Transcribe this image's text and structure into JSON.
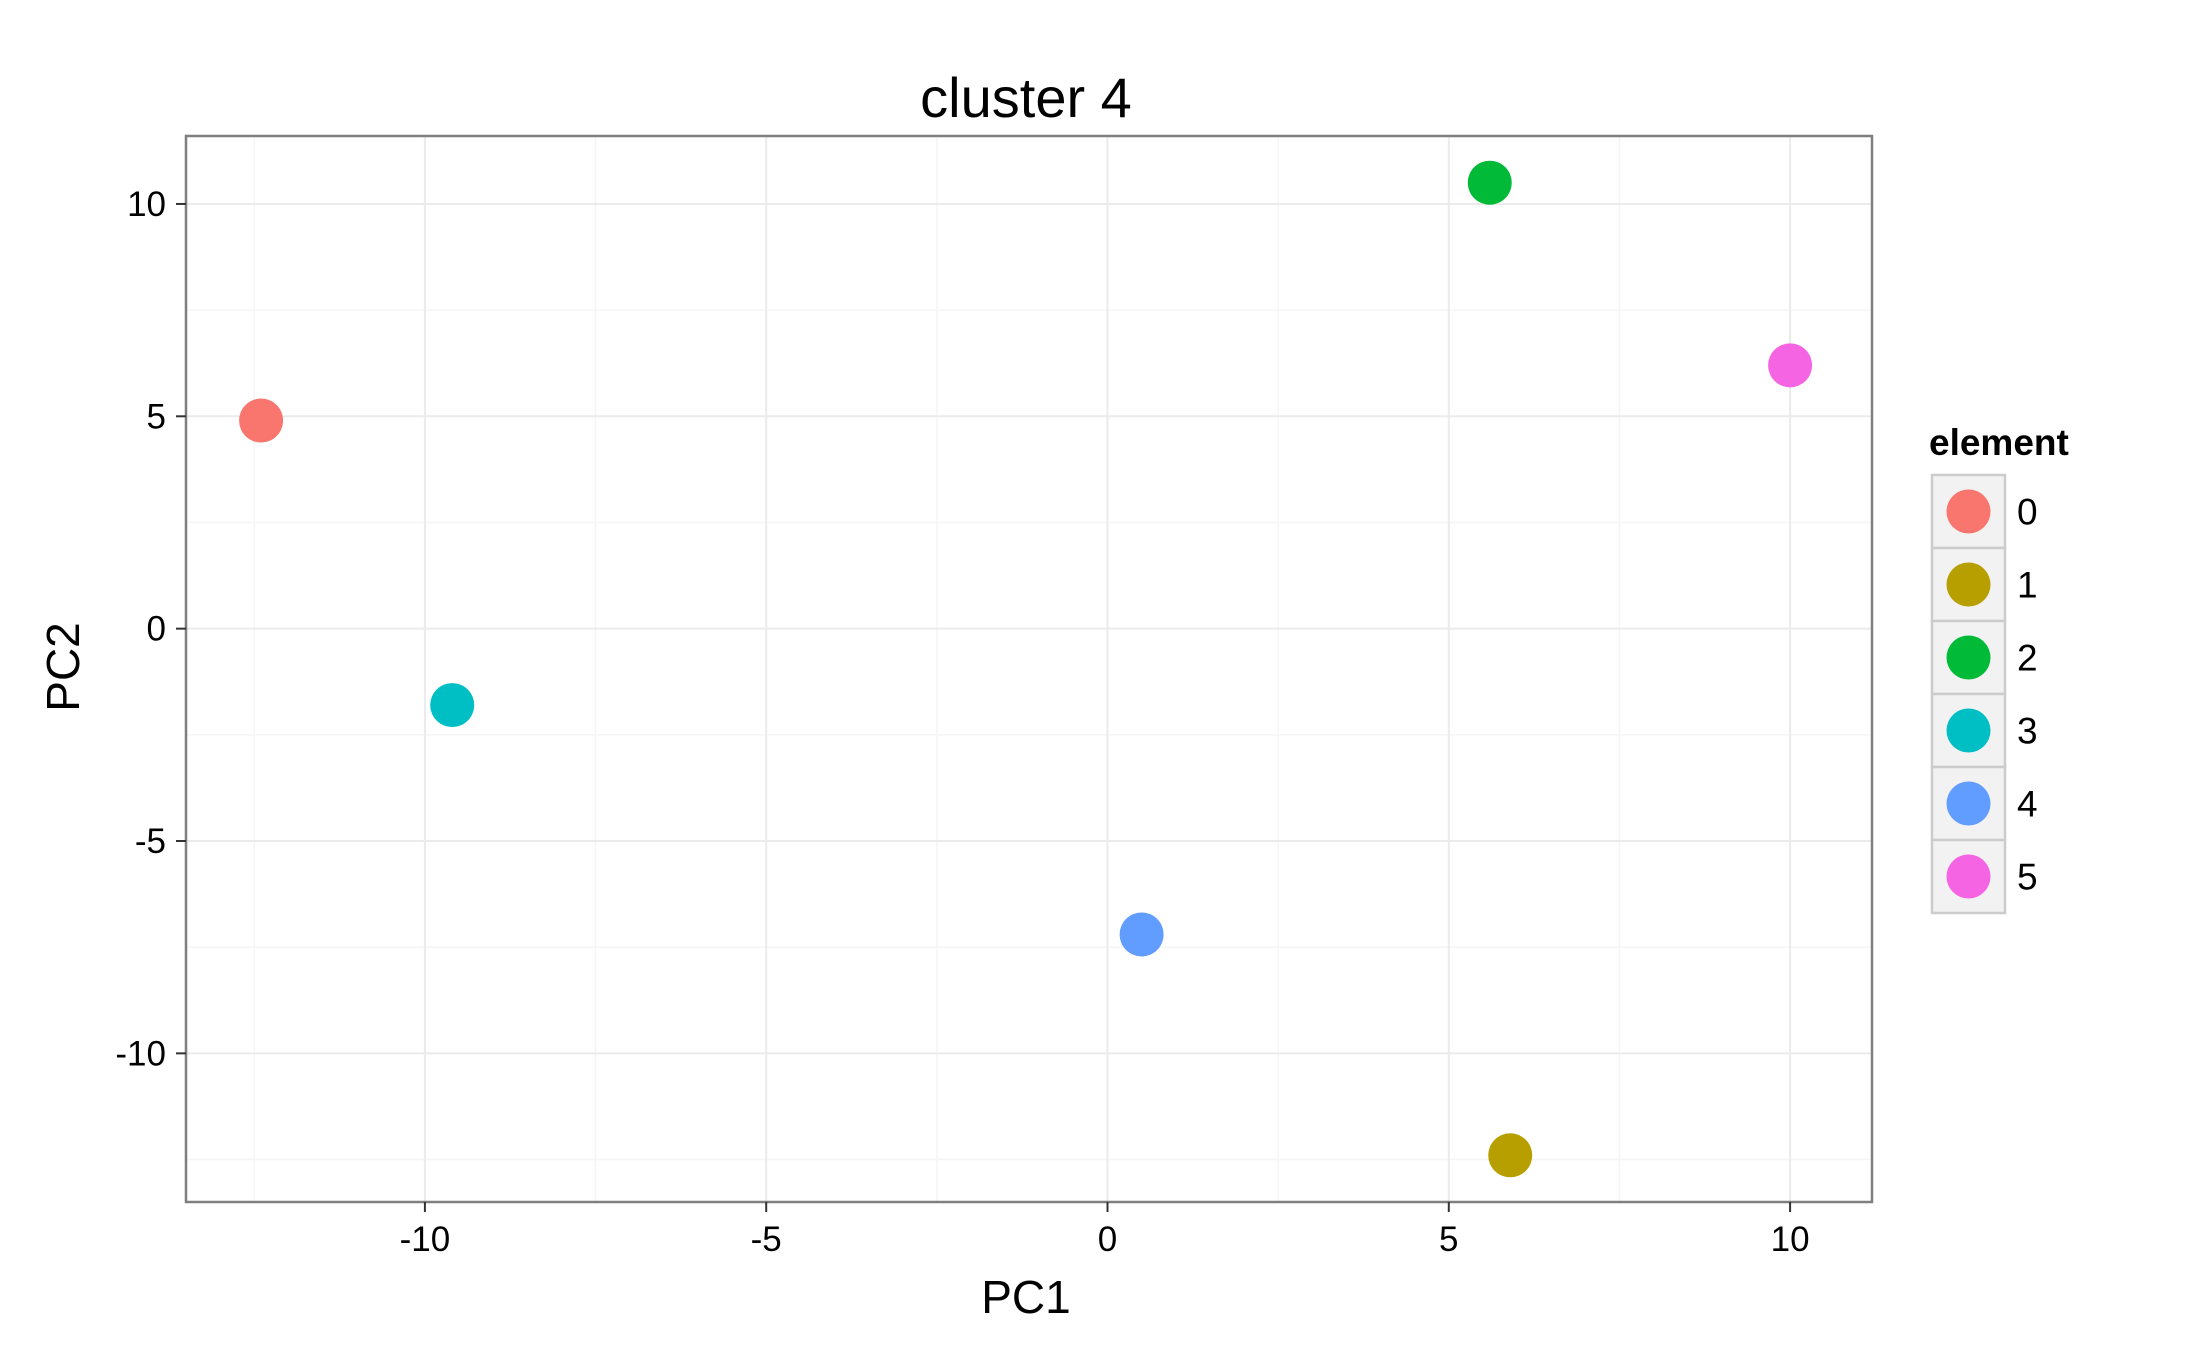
{
  "chart_data": {
    "type": "scatter",
    "title": "cluster 4",
    "xlabel": "PC1",
    "ylabel": "PC2",
    "xlim": [
      -13.5,
      11.2
    ],
    "ylim": [
      -13.5,
      11.6
    ],
    "xticks": [
      -10,
      -5,
      0,
      5,
      10
    ],
    "yticks": [
      10,
      5,
      0,
      -5,
      -10
    ],
    "grid": true,
    "legend": {
      "title": "element",
      "placement": "right"
    },
    "series": [
      {
        "name": "0",
        "color": "#F8766D",
        "x": -12.4,
        "y": 4.9
      },
      {
        "name": "1",
        "color": "#B79F00",
        "x": 5.9,
        "y": -12.4
      },
      {
        "name": "2",
        "color": "#00BA38",
        "x": 5.6,
        "y": 10.5
      },
      {
        "name": "3",
        "color": "#00BFC4",
        "x": -9.6,
        "y": -1.8
      },
      {
        "name": "4",
        "color": "#619CFF",
        "x": 0.5,
        "y": -7.2
      },
      {
        "name": "5",
        "color": "#F564E3",
        "x": 10.0,
        "y": 6.2
      }
    ]
  }
}
